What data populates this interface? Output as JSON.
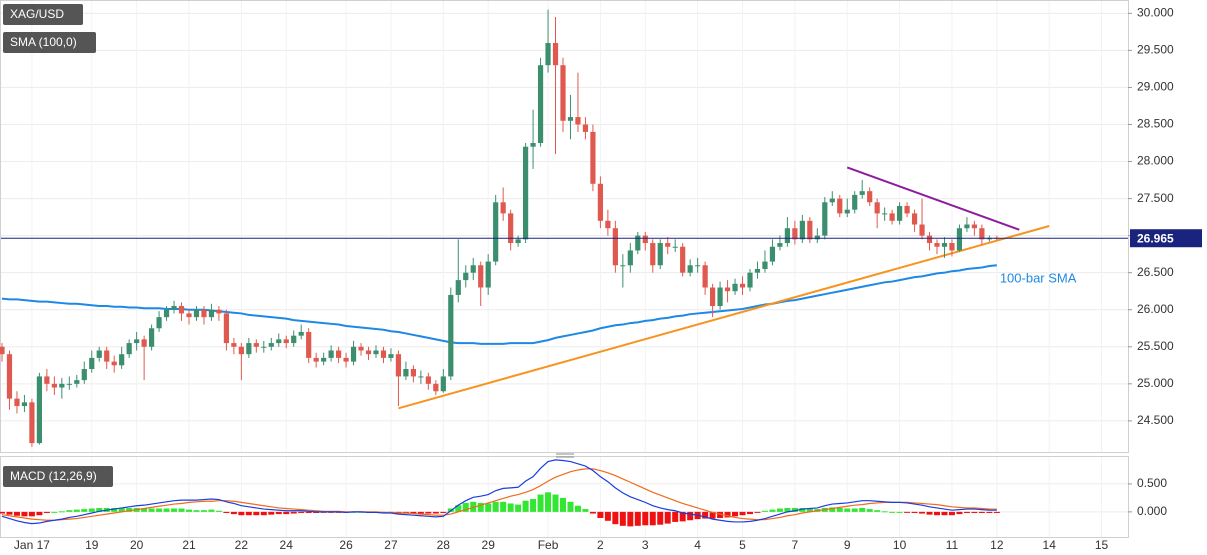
{
  "chart_data": {
    "type": "candlestick",
    "title": "XAG/USD",
    "up_color": "#3b8f6f",
    "down_color": "#e0594f",
    "categories": [
      null,
      null,
      null,
      null,
      "Jan 17",
      null,
      null,
      null,
      null,
      null,
      null,
      null,
      "19",
      null,
      null,
      null,
      null,
      null,
      "20",
      null,
      null,
      null,
      null,
      null,
      null,
      "21",
      null,
      null,
      null,
      null,
      null,
      null,
      "22",
      null,
      null,
      null,
      null,
      null,
      "24",
      null,
      null,
      null,
      null,
      null,
      null,
      null,
      "26",
      null,
      null,
      null,
      null,
      null,
      "27",
      null,
      null,
      null,
      null,
      null,
      null,
      "28",
      null,
      null,
      null,
      null,
      null,
      "29",
      null,
      null,
      null,
      null,
      null,
      null,
      null,
      "Feb",
      null,
      null,
      null,
      null,
      null,
      null,
      "2",
      null,
      null,
      null,
      null,
      null,
      "3",
      null,
      null,
      null,
      null,
      null,
      null,
      "4",
      null,
      null,
      null,
      null,
      null,
      "5",
      null,
      null,
      null,
      null,
      null,
      null,
      "7",
      null,
      null,
      null,
      null,
      null,
      null,
      "9",
      null,
      null,
      null,
      null,
      null,
      null,
      "10",
      null,
      null,
      null,
      null,
      null,
      null,
      "11",
      null,
      null,
      null,
      null,
      null,
      "12",
      null,
      null,
      null,
      null,
      null,
      null,
      "14",
      null,
      null,
      null,
      null,
      null,
      null,
      "15"
    ],
    "open": [
      25.5,
      25.4,
      24.8,
      24.7,
      24.75,
      24.2,
      25.1,
      25.0,
      24.95,
      25.0,
      25.0,
      25.05,
      25.2,
      25.35,
      25.45,
      25.3,
      25.25,
      25.4,
      25.55,
      25.6,
      25.5,
      25.75,
      25.9,
      26.0,
      26.05,
      25.95,
      25.9,
      26.0,
      25.9,
      26.0,
      25.95,
      25.55,
      25.5,
      25.4,
      25.55,
      25.5,
      25.5,
      25.55,
      25.6,
      25.55,
      25.65,
      25.7,
      25.35,
      25.3,
      25.35,
      25.45,
      25.35,
      25.3,
      25.5,
      25.45,
      25.4,
      25.45,
      25.35,
      25.4,
      25.1,
      25.2,
      25.1,
      25.1,
      25.0,
      24.9,
      25.1,
      26.2,
      26.4,
      26.5,
      26.6,
      26.3,
      26.65,
      27.45,
      27.3,
      26.9,
      26.95,
      28.2,
      28.25,
      29.3,
      29.6,
      29.3,
      28.55,
      28.6,
      28.5,
      28.4,
      27.7,
      27.2,
      27.1,
      26.6,
      26.6,
      26.8,
      27.0,
      26.9,
      26.6,
      26.9,
      26.85,
      26.85,
      26.5,
      26.6,
      26.6,
      26.3,
      26.05,
      26.3,
      26.25,
      26.35,
      26.3,
      26.5,
      26.55,
      26.65,
      26.85,
      26.9,
      27.1,
      26.95,
      27.2,
      26.95,
      27.0,
      27.45,
      27.5,
      27.3,
      27.35,
      27.55,
      27.6,
      27.45,
      27.3,
      27.3,
      27.2,
      27.4,
      27.3,
      27.15,
      27.0,
      26.9,
      26.85,
      26.9,
      26.8,
      27.1,
      27.15,
      27.1,
      26.95,
      26.97,
      null,
      null,
      null,
      null,
      null,
      null,
      null,
      null,
      null,
      null,
      null,
      null,
      null,
      null
    ],
    "high": [
      25.55,
      25.45,
      24.9,
      24.85,
      24.8,
      25.15,
      25.2,
      25.1,
      25.08,
      25.1,
      25.12,
      25.3,
      25.45,
      25.5,
      25.5,
      25.38,
      25.5,
      25.6,
      25.7,
      25.65,
      25.8,
      25.98,
      26.05,
      26.12,
      26.1,
      26.0,
      26.05,
      26.05,
      26.08,
      26.05,
      26.0,
      25.62,
      25.55,
      25.62,
      25.6,
      25.58,
      25.62,
      25.68,
      25.65,
      25.72,
      25.8,
      25.75,
      25.42,
      25.42,
      25.52,
      25.5,
      25.42,
      25.58,
      25.55,
      25.5,
      25.52,
      25.5,
      25.48,
      25.45,
      25.3,
      25.25,
      25.18,
      25.15,
      25.05,
      25.2,
      26.3,
      26.95,
      26.6,
      26.7,
      26.65,
      26.75,
      27.55,
      27.65,
      27.35,
      27.0,
      28.25,
      28.7,
      29.4,
      30.05,
      29.95,
      29.4,
      28.9,
      29.2,
      28.6,
      28.5,
      27.8,
      27.35,
      27.2,
      26.75,
      26.9,
      27.05,
      27.05,
      26.95,
      26.95,
      26.98,
      26.95,
      26.9,
      26.68,
      26.7,
      26.65,
      26.35,
      26.38,
      26.4,
      26.42,
      26.45,
      26.55,
      26.65,
      26.8,
      26.95,
      27.0,
      27.25,
      27.2,
      27.28,
      27.25,
      27.1,
      27.52,
      27.6,
      27.55,
      27.5,
      27.6,
      27.75,
      27.65,
      27.5,
      27.38,
      27.35,
      27.45,
      27.45,
      27.35,
      27.5,
      27.05,
      26.95,
      26.98,
      26.95,
      27.15,
      27.25,
      27.2,
      27.15,
      27.0,
      27.0,
      null,
      null,
      null,
      null,
      null,
      null,
      null,
      null,
      null,
      null,
      null,
      null,
      null,
      null
    ],
    "low": [
      25.3,
      24.65,
      24.6,
      24.62,
      24.15,
      24.18,
      24.9,
      24.85,
      24.8,
      24.92,
      24.95,
      25.0,
      25.15,
      25.3,
      25.2,
      25.15,
      25.2,
      25.35,
      25.45,
      25.05,
      25.45,
      25.7,
      25.85,
      25.95,
      25.85,
      25.8,
      25.85,
      25.8,
      25.85,
      25.85,
      25.45,
      25.4,
      25.05,
      25.35,
      25.42,
      25.42,
      25.45,
      25.5,
      25.48,
      25.5,
      25.6,
      25.28,
      25.22,
      25.25,
      25.3,
      25.28,
      25.22,
      25.25,
      25.38,
      25.32,
      25.35,
      25.28,
      25.3,
      24.7,
      25.05,
      25.02,
      25.0,
      24.92,
      24.85,
      24.88,
      25.05,
      26.1,
      26.3,
      26.4,
      26.05,
      26.2,
      26.6,
      27.2,
      26.8,
      26.85,
      26.9,
      27.9,
      28.2,
      29.2,
      28.1,
      28.4,
      28.3,
      28.4,
      28.3,
      27.6,
      27.1,
      27.0,
      26.5,
      26.3,
      26.5,
      26.75,
      26.8,
      26.5,
      26.55,
      26.75,
      26.78,
      26.45,
      26.45,
      26.5,
      26.2,
      25.9,
      26.0,
      26.1,
      26.2,
      26.2,
      26.25,
      26.42,
      26.5,
      26.6,
      26.8,
      26.85,
      26.88,
      26.9,
      26.9,
      26.9,
      26.95,
      27.4,
      27.25,
      27.25,
      27.3,
      27.5,
      27.4,
      27.1,
      27.2,
      27.15,
      27.15,
      27.25,
      27.05,
      26.95,
      26.8,
      26.75,
      26.7,
      26.72,
      26.78,
      27.05,
      27.0,
      26.88,
      26.92,
      26.94,
      null,
      null,
      null,
      null,
      null,
      null,
      null,
      null,
      null,
      null,
      null,
      null,
      null,
      null
    ],
    "close": [
      25.4,
      24.8,
      24.7,
      24.75,
      24.2,
      25.1,
      25.0,
      24.95,
      25.0,
      25.0,
      25.05,
      25.2,
      25.35,
      25.45,
      25.3,
      25.25,
      25.4,
      25.55,
      25.6,
      25.5,
      25.75,
      25.9,
      26.0,
      26.05,
      25.95,
      25.9,
      26.0,
      25.9,
      26.0,
      25.95,
      25.55,
      25.5,
      25.4,
      25.55,
      25.5,
      25.5,
      25.55,
      25.6,
      25.55,
      25.65,
      25.7,
      25.35,
      25.3,
      25.35,
      25.45,
      25.35,
      25.3,
      25.5,
      25.45,
      25.4,
      25.45,
      25.35,
      25.4,
      25.1,
      25.2,
      25.1,
      25.1,
      25.0,
      24.9,
      25.1,
      26.2,
      26.4,
      26.5,
      26.6,
      26.3,
      26.65,
      27.45,
      27.3,
      26.9,
      26.95,
      28.2,
      28.25,
      29.3,
      29.6,
      29.3,
      28.55,
      28.6,
      28.5,
      28.4,
      27.7,
      27.2,
      27.1,
      26.6,
      26.6,
      26.8,
      27.0,
      26.9,
      26.6,
      26.9,
      26.85,
      26.85,
      26.5,
      26.6,
      26.6,
      26.3,
      26.05,
      26.3,
      26.25,
      26.35,
      26.3,
      26.5,
      26.55,
      26.65,
      26.85,
      26.9,
      27.1,
      26.95,
      27.2,
      26.95,
      27.0,
      27.45,
      27.5,
      27.3,
      27.35,
      27.55,
      27.6,
      27.45,
      27.3,
      27.3,
      27.2,
      27.4,
      27.3,
      27.15,
      27.0,
      26.9,
      26.85,
      26.9,
      26.8,
      27.1,
      27.15,
      27.1,
      26.95,
      26.97,
      26.965,
      null,
      null,
      null,
      null,
      null,
      null,
      null,
      null,
      null,
      null,
      null,
      null,
      null,
      null
    ],
    "sma": {
      "name": "SMA (100,0)",
      "color": "#1e88e5",
      "annotation": "100-bar SMA",
      "values": [
        26.15,
        26.14,
        26.14,
        26.13,
        26.12,
        26.11,
        26.11,
        26.1,
        26.09,
        26.08,
        26.08,
        26.07,
        26.06,
        26.05,
        26.05,
        26.04,
        26.04,
        26.03,
        26.03,
        26.02,
        26.02,
        26.02,
        26.01,
        26.01,
        26.01,
        26.0,
        26.0,
        26.0,
        25.99,
        25.98,
        25.97,
        25.96,
        25.95,
        25.93,
        25.92,
        25.91,
        25.9,
        25.89,
        25.88,
        25.86,
        25.85,
        25.84,
        25.83,
        25.82,
        25.81,
        25.8,
        25.78,
        25.77,
        25.76,
        25.75,
        25.74,
        25.73,
        25.71,
        25.7,
        25.68,
        25.66,
        25.64,
        25.62,
        25.6,
        25.58,
        25.56,
        25.55,
        25.55,
        25.55,
        25.54,
        25.54,
        25.54,
        25.54,
        25.55,
        25.55,
        25.55,
        25.55,
        25.57,
        25.59,
        25.62,
        25.64,
        25.66,
        25.68,
        25.7,
        25.72,
        25.75,
        25.77,
        25.79,
        25.8,
        25.82,
        25.83,
        25.85,
        25.86,
        25.88,
        25.89,
        25.91,
        25.92,
        25.94,
        25.95,
        25.96,
        25.97,
        25.98,
        25.99,
        26.0,
        26.01,
        26.03,
        26.05,
        26.07,
        26.08,
        26.1,
        26.12,
        26.13,
        26.15,
        26.17,
        26.19,
        26.21,
        26.23,
        26.25,
        26.27,
        26.29,
        26.31,
        26.33,
        26.35,
        26.37,
        26.38,
        26.4,
        26.42,
        26.44,
        26.45,
        26.47,
        26.49,
        26.5,
        26.52,
        26.53,
        26.55,
        26.56,
        26.57,
        26.59,
        26.6,
        null,
        null,
        null,
        null,
        null,
        null,
        null,
        null,
        null,
        null,
        null,
        null,
        null,
        null
      ]
    },
    "trendlines": [
      {
        "color": "#f7931e",
        "points": [
          [
            53,
            24.67
          ],
          [
            140,
            27.13
          ]
        ]
      },
      {
        "color": "#8e1c9e",
        "points": [
          [
            113,
            27.92
          ],
          [
            136,
            27.08
          ]
        ]
      }
    ],
    "last_price": {
      "value": 26.965,
      "color": "#1a237e"
    },
    "ylim": [
      24.08,
      30.18
    ],
    "yticks": [
      {
        "value": 24.5,
        "label": "24.500"
      },
      {
        "value": 25,
        "label": "25.000"
      },
      {
        "value": 25.5,
        "label": "25.500"
      },
      {
        "value": 26,
        "label": "26.000"
      },
      {
        "value": 26.5,
        "label": "26.500"
      },
      {
        "value": 27,
        "label": "27.000"
      },
      {
        "value": 27.5,
        "label": "27.500"
      },
      {
        "value": 28,
        "label": "28.000"
      },
      {
        "value": 28.5,
        "label": "28.500"
      },
      {
        "value": 29,
        "label": "29.000"
      },
      {
        "value": 29.5,
        "label": "29.500"
      },
      {
        "value": 30,
        "label": "30.000"
      }
    ],
    "grid": true,
    "macd": {
      "name": "MACD (12,26,9)",
      "macd_color": "#1a3de0",
      "signal_color": "#f06a1c",
      "positive_color": "#33e633",
      "negative_color": "#ee1111",
      "ylim": [
        -0.45,
        1.0
      ],
      "yticks": [
        {
          "value": 0,
          "label": "0.000"
        },
        {
          "value": 0.5,
          "label": "0.500"
        }
      ],
      "macd": [
        -0.08,
        -0.12,
        -0.16,
        -0.19,
        -0.21,
        -0.2,
        -0.17,
        -0.15,
        -0.13,
        -0.1,
        -0.08,
        -0.05,
        -0.02,
        0.01,
        0.03,
        0.05,
        0.07,
        0.09,
        0.11,
        0.12,
        0.14,
        0.16,
        0.18,
        0.2,
        0.21,
        0.21,
        0.21,
        0.22,
        0.23,
        0.22,
        0.18,
        0.15,
        0.11,
        0.09,
        0.07,
        0.05,
        0.04,
        0.03,
        0.02,
        0.02,
        0.02,
        0.01,
        0.0,
        0.0,
        0.0,
        0.0,
        -0.01,
        0.0,
        0.0,
        -0.01,
        -0.01,
        -0.02,
        -0.02,
        -0.04,
        -0.05,
        -0.06,
        -0.07,
        -0.08,
        -0.09,
        -0.08,
        0.02,
        0.12,
        0.2,
        0.26,
        0.28,
        0.31,
        0.38,
        0.42,
        0.43,
        0.44,
        0.55,
        0.63,
        0.78,
        0.9,
        0.93,
        0.92,
        0.9,
        0.86,
        0.82,
        0.74,
        0.63,
        0.54,
        0.43,
        0.34,
        0.27,
        0.22,
        0.17,
        0.11,
        0.07,
        0.04,
        0.02,
        -0.02,
        -0.04,
        -0.06,
        -0.09,
        -0.13,
        -0.15,
        -0.17,
        -0.18,
        -0.18,
        -0.17,
        -0.15,
        -0.12,
        -0.08,
        -0.04,
        0.0,
        0.02,
        0.05,
        0.06,
        0.07,
        0.11,
        0.14,
        0.15,
        0.16,
        0.18,
        0.2,
        0.2,
        0.19,
        0.18,
        0.17,
        0.17,
        0.16,
        0.14,
        0.12,
        0.09,
        0.07,
        0.05,
        0.03,
        0.04,
        0.05,
        0.05,
        0.04,
        0.03,
        0.03,
        null,
        null,
        null,
        null,
        null,
        null,
        null,
        null,
        null,
        null,
        null,
        null,
        null,
        null
      ],
      "signal": [
        -0.05,
        -0.07,
        -0.09,
        -0.11,
        -0.13,
        -0.14,
        -0.15,
        -0.15,
        -0.14,
        -0.13,
        -0.12,
        -0.1,
        -0.08,
        -0.06,
        -0.04,
        -0.02,
        0.0,
        0.02,
        0.04,
        0.06,
        0.08,
        0.1,
        0.12,
        0.14,
        0.15,
        0.17,
        0.18,
        0.19,
        0.19,
        0.2,
        0.2,
        0.19,
        0.17,
        0.15,
        0.13,
        0.11,
        0.09,
        0.07,
        0.06,
        0.05,
        0.04,
        0.03,
        0.02,
        0.01,
        0.01,
        0.01,
        0.0,
        0.0,
        0.0,
        0.0,
        0.0,
        -0.01,
        -0.01,
        -0.02,
        -0.02,
        -0.03,
        -0.04,
        -0.05,
        -0.06,
        -0.06,
        -0.04,
        0.0,
        0.04,
        0.08,
        0.12,
        0.16,
        0.2,
        0.24,
        0.28,
        0.31,
        0.35,
        0.4,
        0.47,
        0.55,
        0.62,
        0.67,
        0.72,
        0.75,
        0.77,
        0.77,
        0.74,
        0.7,
        0.65,
        0.59,
        0.53,
        0.47,
        0.41,
        0.35,
        0.3,
        0.25,
        0.2,
        0.15,
        0.11,
        0.07,
        0.03,
        -0.01,
        -0.04,
        -0.07,
        -0.1,
        -0.12,
        -0.13,
        -0.14,
        -0.14,
        -0.12,
        -0.1,
        -0.07,
        -0.05,
        -0.02,
        0.0,
        0.02,
        0.04,
        0.06,
        0.08,
        0.1,
        0.12,
        0.13,
        0.15,
        0.16,
        0.17,
        0.17,
        0.17,
        0.17,
        0.16,
        0.15,
        0.14,
        0.13,
        0.11,
        0.09,
        0.08,
        0.07,
        0.07,
        0.06,
        0.05,
        0.05,
        null,
        null,
        null,
        null,
        null,
        null,
        null,
        null,
        null,
        null,
        null,
        null,
        null,
        null
      ],
      "histogram": [
        -0.03,
        -0.05,
        -0.07,
        -0.08,
        -0.08,
        -0.06,
        -0.02,
        0.0,
        0.01,
        0.03,
        0.04,
        0.05,
        0.06,
        0.07,
        0.07,
        0.07,
        0.07,
        0.07,
        0.07,
        0.06,
        0.06,
        0.06,
        0.06,
        0.06,
        0.06,
        0.04,
        0.03,
        0.03,
        0.04,
        0.02,
        -0.02,
        -0.04,
        -0.06,
        -0.06,
        -0.06,
        -0.06,
        -0.05,
        -0.04,
        -0.04,
        -0.03,
        -0.02,
        -0.02,
        -0.02,
        -0.01,
        -0.01,
        -0.01,
        -0.01,
        0.0,
        0.0,
        -0.01,
        -0.01,
        -0.01,
        -0.01,
        -0.02,
        -0.03,
        -0.03,
        -0.03,
        -0.03,
        -0.03,
        -0.02,
        0.06,
        0.12,
        0.16,
        0.18,
        0.16,
        0.15,
        0.18,
        0.18,
        0.15,
        0.13,
        0.2,
        0.23,
        0.31,
        0.35,
        0.31,
        0.25,
        0.18,
        0.11,
        0.05,
        -0.03,
        -0.11,
        -0.16,
        -0.22,
        -0.25,
        -0.26,
        -0.25,
        -0.24,
        -0.24,
        -0.23,
        -0.21,
        -0.18,
        -0.17,
        -0.15,
        -0.13,
        -0.12,
        -0.12,
        -0.11,
        -0.1,
        -0.08,
        -0.06,
        -0.04,
        -0.01,
        0.02,
        0.04,
        0.06,
        0.07,
        0.07,
        0.07,
        0.06,
        0.05,
        0.07,
        0.08,
        0.07,
        0.06,
        0.06,
        0.07,
        0.05,
        0.03,
        0.01,
        0.0,
        0.0,
        -0.01,
        -0.02,
        -0.03,
        -0.05,
        -0.06,
        -0.06,
        -0.06,
        -0.04,
        -0.02,
        -0.02,
        -0.02,
        -0.02,
        -0.02,
        null,
        null,
        null,
        null,
        null,
        null,
        null,
        null,
        null,
        null,
        null,
        null,
        null,
        null
      ]
    }
  }
}
